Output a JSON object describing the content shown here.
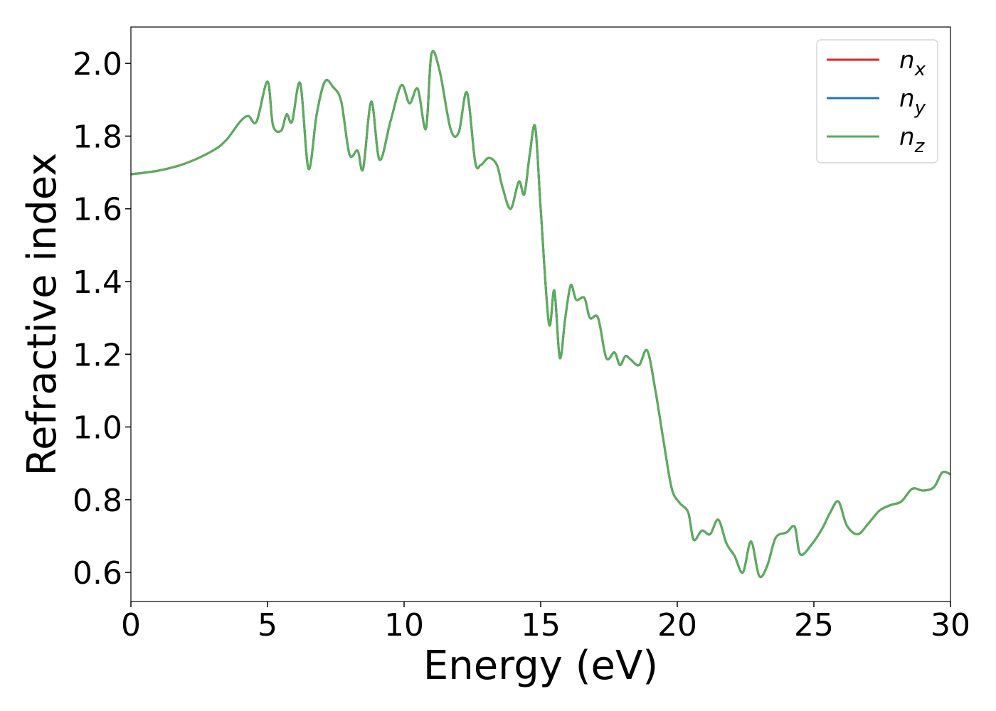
{
  "chart_data": {
    "type": "line",
    "xlabel": "Energy (eV)",
    "ylabel": "Refractive index",
    "xlim": [
      0,
      30
    ],
    "ylim": [
      0.52,
      2.1
    ],
    "xticks": [
      "0",
      "5",
      "10",
      "15",
      "20",
      "25",
      "30"
    ],
    "yticks": [
      "0.6",
      "0.8",
      "1.0",
      "1.2",
      "1.4",
      "1.6",
      "1.8",
      "2.0"
    ],
    "grid": false,
    "legend_position": "top-right",
    "series": [
      {
        "name": "n_x",
        "label_base": "n",
        "label_sub": "x",
        "color": "#d62728",
        "x": [
          0,
          1,
          2,
          3,
          3.5,
          4,
          4.3,
          4.6,
          5.0,
          5.2,
          5.5,
          5.7,
          5.9,
          6.2,
          6.5,
          6.8,
          7.1,
          7.4,
          7.7,
          8.0,
          8.3,
          8.5,
          8.8,
          9.1,
          9.5,
          9.9,
          10.2,
          10.5,
          10.8,
          11.0,
          11.3,
          11.7,
          12.0,
          12.3,
          12.6,
          12.8,
          13.1,
          13.4,
          13.6,
          13.9,
          14.2,
          14.4,
          14.6,
          14.8,
          15.0,
          15.3,
          15.5,
          15.7,
          15.9,
          16.1,
          16.3,
          16.6,
          16.8,
          17.1,
          17.4,
          17.7,
          17.9,
          18.1,
          18.3,
          18.6,
          18.9,
          19.2,
          19.5,
          19.8,
          20.1,
          20.4,
          20.6,
          20.9,
          21.2,
          21.5,
          21.8,
          22.1,
          22.4,
          22.7,
          23.0,
          23.3,
          23.6,
          24.0,
          24.3,
          24.5,
          24.9,
          25.3,
          25.6,
          25.9,
          26.2,
          26.6,
          27.0,
          27.4,
          27.8,
          28.2,
          28.6,
          29.0,
          29.4,
          29.7,
          30.0
        ],
        "y": [
          1.695,
          1.705,
          1.725,
          1.76,
          1.79,
          1.84,
          1.855,
          1.84,
          1.95,
          1.83,
          1.815,
          1.86,
          1.84,
          1.945,
          1.71,
          1.86,
          1.95,
          1.935,
          1.895,
          1.75,
          1.76,
          1.71,
          1.895,
          1.735,
          1.84,
          1.94,
          1.89,
          1.93,
          1.82,
          2.025,
          1.98,
          1.82,
          1.81,
          1.92,
          1.73,
          1.72,
          1.74,
          1.72,
          1.66,
          1.6,
          1.675,
          1.64,
          1.75,
          1.825,
          1.6,
          1.285,
          1.375,
          1.19,
          1.3,
          1.39,
          1.35,
          1.355,
          1.3,
          1.3,
          1.19,
          1.205,
          1.17,
          1.195,
          1.185,
          1.17,
          1.21,
          1.1,
          0.96,
          0.83,
          0.79,
          0.765,
          0.69,
          0.715,
          0.705,
          0.745,
          0.68,
          0.645,
          0.6,
          0.685,
          0.59,
          0.62,
          0.695,
          0.71,
          0.725,
          0.65,
          0.675,
          0.72,
          0.765,
          0.795,
          0.73,
          0.705,
          0.735,
          0.77,
          0.785,
          0.795,
          0.83,
          0.825,
          0.835,
          0.875,
          0.87
        ]
      },
      {
        "name": "n_y",
        "label_base": "n",
        "label_sub": "y",
        "color": "#1f77b4",
        "x": [
          0,
          1,
          2,
          3,
          3.5,
          4,
          4.3,
          4.6,
          5.0,
          5.2,
          5.5,
          5.7,
          5.9,
          6.2,
          6.5,
          6.8,
          7.1,
          7.4,
          7.7,
          8.0,
          8.3,
          8.5,
          8.8,
          9.1,
          9.5,
          9.9,
          10.2,
          10.5,
          10.8,
          11.0,
          11.3,
          11.7,
          12.0,
          12.3,
          12.6,
          12.8,
          13.1,
          13.4,
          13.6,
          13.9,
          14.2,
          14.4,
          14.6,
          14.8,
          15.0,
          15.3,
          15.5,
          15.7,
          15.9,
          16.1,
          16.3,
          16.6,
          16.8,
          17.1,
          17.4,
          17.7,
          17.9,
          18.1,
          18.3,
          18.6,
          18.9,
          19.2,
          19.5,
          19.8,
          20.1,
          20.4,
          20.6,
          20.9,
          21.2,
          21.5,
          21.8,
          22.1,
          22.4,
          22.7,
          23.0,
          23.3,
          23.6,
          24.0,
          24.3,
          24.5,
          24.9,
          25.3,
          25.6,
          25.9,
          26.2,
          26.6,
          27.0,
          27.4,
          27.8,
          28.2,
          28.6,
          29.0,
          29.4,
          29.7,
          30.0
        ],
        "y": [
          1.695,
          1.705,
          1.725,
          1.76,
          1.79,
          1.84,
          1.855,
          1.84,
          1.95,
          1.83,
          1.815,
          1.86,
          1.84,
          1.945,
          1.71,
          1.86,
          1.95,
          1.935,
          1.895,
          1.75,
          1.76,
          1.71,
          1.895,
          1.735,
          1.84,
          1.94,
          1.89,
          1.93,
          1.82,
          2.025,
          1.98,
          1.82,
          1.81,
          1.92,
          1.73,
          1.72,
          1.74,
          1.72,
          1.66,
          1.6,
          1.675,
          1.64,
          1.75,
          1.825,
          1.6,
          1.285,
          1.375,
          1.19,
          1.3,
          1.39,
          1.35,
          1.355,
          1.3,
          1.3,
          1.19,
          1.205,
          1.17,
          1.195,
          1.185,
          1.17,
          1.21,
          1.1,
          0.96,
          0.83,
          0.79,
          0.765,
          0.69,
          0.715,
          0.705,
          0.745,
          0.68,
          0.645,
          0.6,
          0.685,
          0.59,
          0.62,
          0.695,
          0.71,
          0.725,
          0.65,
          0.675,
          0.72,
          0.765,
          0.795,
          0.73,
          0.705,
          0.735,
          0.77,
          0.785,
          0.795,
          0.83,
          0.825,
          0.835,
          0.875,
          0.87
        ]
      },
      {
        "name": "n_z",
        "label_base": "n",
        "label_sub": "z",
        "color": "#5aad5a",
        "x": [
          0,
          1,
          2,
          3,
          3.5,
          4,
          4.3,
          4.6,
          5.0,
          5.2,
          5.5,
          5.7,
          5.9,
          6.2,
          6.5,
          6.8,
          7.1,
          7.4,
          7.7,
          8.0,
          8.3,
          8.5,
          8.8,
          9.1,
          9.5,
          9.9,
          10.2,
          10.5,
          10.8,
          11.0,
          11.3,
          11.7,
          12.0,
          12.3,
          12.6,
          12.8,
          13.1,
          13.4,
          13.6,
          13.9,
          14.2,
          14.4,
          14.6,
          14.8,
          15.0,
          15.3,
          15.5,
          15.7,
          15.9,
          16.1,
          16.3,
          16.6,
          16.8,
          17.1,
          17.4,
          17.7,
          17.9,
          18.1,
          18.3,
          18.6,
          18.9,
          19.2,
          19.5,
          19.8,
          20.1,
          20.4,
          20.6,
          20.9,
          21.2,
          21.5,
          21.8,
          22.1,
          22.4,
          22.7,
          23.0,
          23.3,
          23.6,
          24.0,
          24.3,
          24.5,
          24.9,
          25.3,
          25.6,
          25.9,
          26.2,
          26.6,
          27.0,
          27.4,
          27.8,
          28.2,
          28.6,
          29.0,
          29.4,
          29.7,
          30.0
        ],
        "y": [
          1.695,
          1.705,
          1.725,
          1.76,
          1.79,
          1.84,
          1.855,
          1.84,
          1.95,
          1.83,
          1.815,
          1.86,
          1.84,
          1.945,
          1.71,
          1.86,
          1.95,
          1.935,
          1.895,
          1.75,
          1.76,
          1.71,
          1.895,
          1.735,
          1.84,
          1.94,
          1.89,
          1.93,
          1.82,
          2.025,
          1.98,
          1.82,
          1.81,
          1.92,
          1.73,
          1.72,
          1.74,
          1.72,
          1.66,
          1.6,
          1.675,
          1.64,
          1.75,
          1.825,
          1.6,
          1.285,
          1.375,
          1.19,
          1.3,
          1.39,
          1.35,
          1.355,
          1.3,
          1.3,
          1.19,
          1.205,
          1.17,
          1.195,
          1.185,
          1.17,
          1.21,
          1.1,
          0.96,
          0.83,
          0.79,
          0.765,
          0.69,
          0.715,
          0.705,
          0.745,
          0.68,
          0.645,
          0.6,
          0.685,
          0.59,
          0.62,
          0.695,
          0.71,
          0.725,
          0.65,
          0.675,
          0.72,
          0.765,
          0.795,
          0.73,
          0.705,
          0.735,
          0.77,
          0.785,
          0.795,
          0.83,
          0.825,
          0.835,
          0.875,
          0.87
        ]
      }
    ]
  }
}
